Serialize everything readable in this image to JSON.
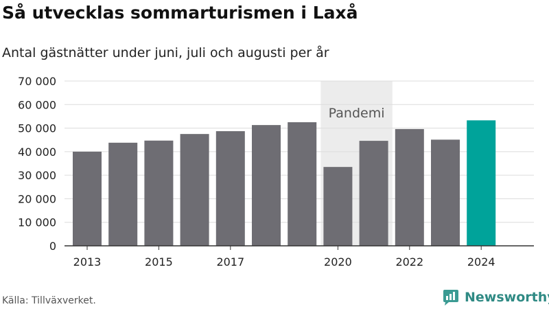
{
  "header": {
    "title": "Så utvecklas sommarturismen i Laxå",
    "subtitle": "Antal gästnätter under juni, juli och augusti per år"
  },
  "chart_data": {
    "type": "bar",
    "categories": [
      "2013",
      "2014",
      "2015",
      "2016",
      "2017",
      "2018",
      "2019",
      "2020",
      "2021",
      "2022",
      "2023",
      "2024"
    ],
    "values": [
      40000,
      43800,
      44700,
      47500,
      48700,
      51300,
      52500,
      33500,
      44600,
      49600,
      45100,
      53300
    ],
    "x_tick_labels": [
      "2013",
      "2015",
      "2017",
      "2020",
      "2022",
      "2024"
    ],
    "y_tick_labels": [
      "0",
      "10 000",
      "20 000",
      "30 000",
      "40 000",
      "50 000",
      "60 000",
      "70 000"
    ],
    "ylim": [
      0,
      70000
    ],
    "y_ticks": [
      0,
      10000,
      20000,
      30000,
      40000,
      50000,
      60000,
      70000
    ],
    "grid": true,
    "highlight": {
      "category": "2024",
      "color": "#00a39a"
    },
    "bar_color": "#6e6d73",
    "annotation": {
      "label": "Pandemi",
      "from": "2020",
      "to": "2021",
      "color": "#ececec"
    }
  },
  "footer": {
    "source": "Källa: Tillväxverket.",
    "brand": "Newsworthy",
    "brand_icon": "newsworthy-logo-icon"
  }
}
